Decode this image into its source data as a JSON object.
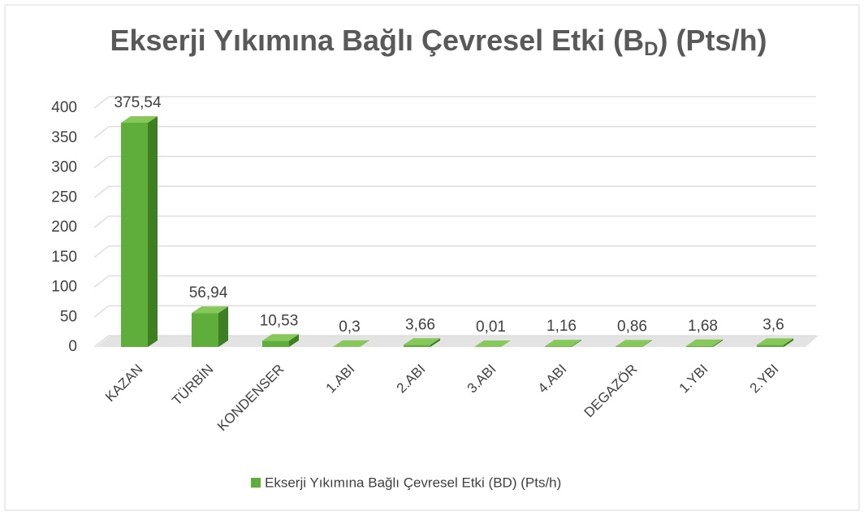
{
  "chart_data": {
    "type": "bar",
    "title_parts": [
      "Ekserji Yıkımına Bağlı Çevresel Etki (B",
      "D",
      ") (Pts/h)"
    ],
    "categories": [
      "KAZAN",
      "TÜRBİN",
      "KONDENSER",
      "1.ABI",
      "2.ABI",
      "3.ABI",
      "4.ABI",
      "DEGAZÖR",
      "1.YBI",
      "2.YBI"
    ],
    "series": [
      {
        "name": "Ekserji Yıkımına Bağlı Çevresel Etki (BD) (Pts/h)",
        "color": "#5fae3c",
        "values": [
          375.54,
          56.94,
          10.53,
          0.3,
          3.66,
          0.01,
          1.16,
          0.86,
          1.68,
          3.6
        ],
        "value_labels": [
          "375,54",
          "56,94",
          "10,53",
          "0,3",
          "3,66",
          "0,01",
          "1,16",
          "0,86",
          "1,68",
          "3,6"
        ]
      }
    ],
    "ylim": [
      0,
      400
    ],
    "yticks": [
      0,
      50,
      100,
      150,
      200,
      250,
      300,
      350,
      400
    ],
    "grid": true,
    "legend": "bottom"
  }
}
